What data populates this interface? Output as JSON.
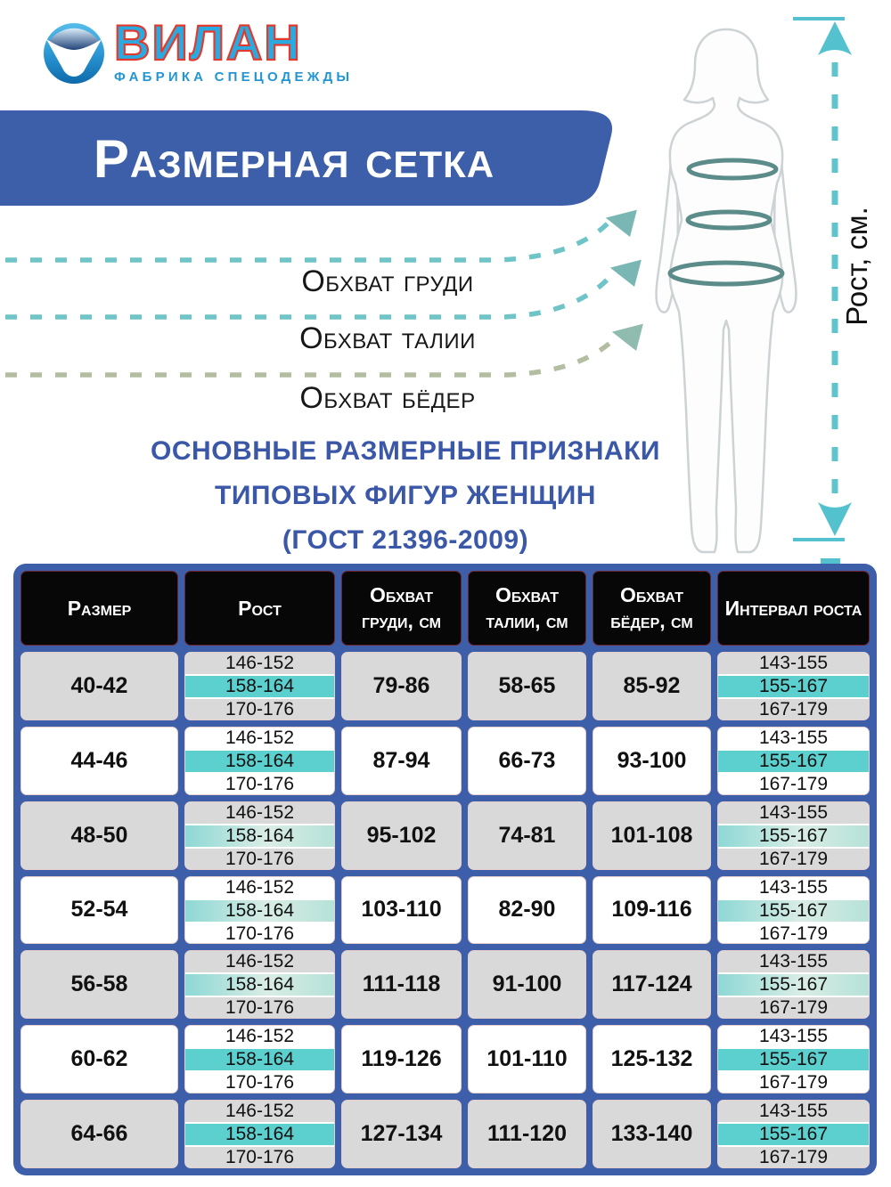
{
  "logo": {
    "name": "ВИЛАН",
    "subtitle": "ФАБРИКА СПЕЦОДЕЖДЫ"
  },
  "banner": {
    "title": "Размерная сетка",
    "color": "#3d5fa9"
  },
  "measurement_labels": {
    "chest": "Обхват груди",
    "waist": "Обхват талии",
    "hips": "Обхват бёдер"
  },
  "height_axis_label": "Рост, см.",
  "heading": {
    "line1": "ОСНОВНЫЕ РАЗМЕРНЫЕ ПРИЗНАКИ",
    "line2": "ТИПОВЫХ ФИГУР ЖЕНЩИН",
    "line3": "(ГОСТ 21396-2009)"
  },
  "colors": {
    "table_frame_blue": "#3d5fa9",
    "header_cell_black": "#070707",
    "row_gray": "#d9d9d9",
    "row_white": "#ffffff",
    "highlight_teal": "#5ccfcf",
    "dash_teal": "#6ec4c6",
    "dash_khaki": "#b3bda1",
    "heading_blue": "#3a57a8",
    "logo_blue": "#29aae1",
    "logo_outline_red": "#e23b2e"
  },
  "table": {
    "columns": [
      "Размер",
      "Рост",
      "Обхват груди, см",
      "Обхват талии, см",
      "Обхват бёдер, см",
      "Интервал роста"
    ],
    "height_bands": [
      "146-152",
      "158-164",
      "170-176"
    ],
    "interval_bands": [
      "143-155",
      "155-167",
      "167-179"
    ],
    "highlighted_band_index": 1,
    "rows": [
      {
        "size": "40-42",
        "chest": "79-86",
        "waist": "58-65",
        "hips": "85-92"
      },
      {
        "size": "44-46",
        "chest": "87-94",
        "waist": "66-73",
        "hips": "93-100"
      },
      {
        "size": "48-50",
        "chest": "95-102",
        "waist": "74-81",
        "hips": "101-108"
      },
      {
        "size": "52-54",
        "chest": "103-110",
        "waist": "82-90",
        "hips": "109-116"
      },
      {
        "size": "56-58",
        "chest": "111-118",
        "waist": "91-100",
        "hips": "117-124"
      },
      {
        "size": "60-62",
        "chest": "119-126",
        "waist": "101-110",
        "hips": "125-132"
      },
      {
        "size": "64-66",
        "chest": "127-134",
        "waist": "111-120",
        "hips": "133-140"
      }
    ]
  }
}
